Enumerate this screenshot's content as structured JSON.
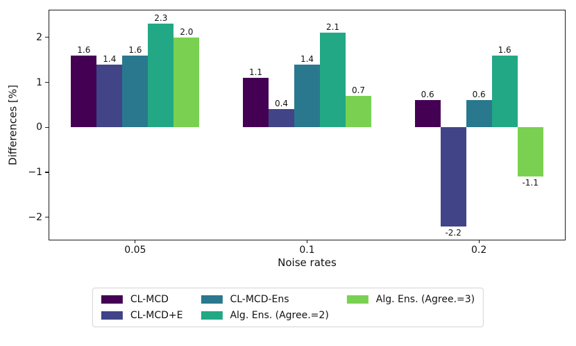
{
  "chart_data": {
    "type": "bar",
    "title": "",
    "xlabel": "Noise rates",
    "ylabel": "Differences [%]",
    "categories": [
      "0.05",
      "0.1",
      "0.2"
    ],
    "series": [
      {
        "name": "CL-MCD",
        "color": "#440154",
        "values": [
          1.6,
          1.1,
          0.6
        ]
      },
      {
        "name": "CL-MCD+E",
        "color": "#414487",
        "values": [
          1.4,
          0.4,
          -2.2
        ]
      },
      {
        "name": "CL-MCD-Ens",
        "color": "#2a788e",
        "values": [
          1.6,
          1.4,
          0.6
        ]
      },
      {
        "name": "Alg. Ens. (Agree.=2)",
        "color": "#22a884",
        "values": [
          2.3,
          2.1,
          1.6
        ]
      },
      {
        "name": "Alg. Ens. (Agree.=3)",
        "color": "#7ad151",
        "values": [
          2.0,
          0.7,
          -1.1
        ]
      }
    ],
    "ylim": [
      -2.5,
      2.6
    ],
    "yticks": [
      -2,
      -1,
      0,
      1,
      2
    ],
    "bar_labels": true,
    "grid": false,
    "legend_position": "bottom",
    "legend_ncol": 3,
    "legend_rows_per_col": 2,
    "bar_label_decimals": 1
  }
}
